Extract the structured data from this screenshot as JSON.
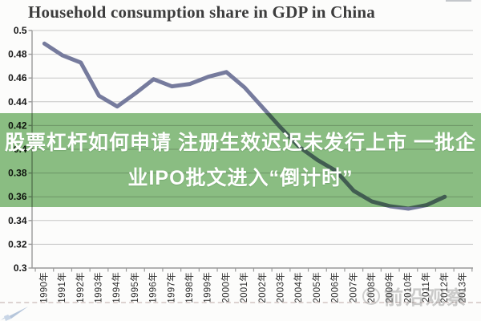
{
  "title": "Household consumption share in GDP in China",
  "overlay": {
    "headline_line1": "股票杠杆如何申请 注册生效迟迟未发行上市 一批企",
    "headline_line2": "业IPO批文进入“倒计时”",
    "bg_color": "#8cc084",
    "text_color": "#ffffff"
  },
  "watermark": {
    "text": "前沿观察"
  },
  "chart_data": {
    "type": "line",
    "title": "Household consumption share in GDP in China",
    "categories": [
      "1990年",
      "1991年",
      "1992年",
      "1993年",
      "1994年",
      "1995年",
      "1996年",
      "1997年",
      "1998年",
      "1999年",
      "2000年",
      "2001年",
      "2002年",
      "2003年",
      "2004年",
      "2005年",
      "2006年",
      "2007年",
      "2008年",
      "2009年",
      "2010年",
      "2011年",
      "2012年",
      "2013年"
    ],
    "series": [
      {
        "name": "Household consumption share in GDP",
        "values": [
          0.489,
          0.479,
          0.473,
          0.445,
          0.436,
          0.447,
          0.459,
          0.453,
          0.455,
          0.461,
          0.465,
          0.452,
          0.435,
          0.418,
          0.402,
          0.391,
          0.382,
          0.365,
          0.356,
          0.352,
          0.35,
          0.353,
          0.36,
          null
        ]
      }
    ],
    "ylim": [
      0.3,
      0.5
    ],
    "y_ticks": [
      "0.5",
      "0.48",
      "0.46",
      "0.44",
      "0.42",
      "0.4",
      "0.38",
      "0.36",
      "0.34",
      "0.32",
      "0.3"
    ],
    "grid": true,
    "legend": false,
    "x_label_rotation": -90,
    "colors": {
      "line": "#767b9d",
      "grid": "#c6c6c6",
      "axis": "#9a9a9a",
      "y_label": "#171717",
      "x_label": "#2e2e2e"
    }
  }
}
